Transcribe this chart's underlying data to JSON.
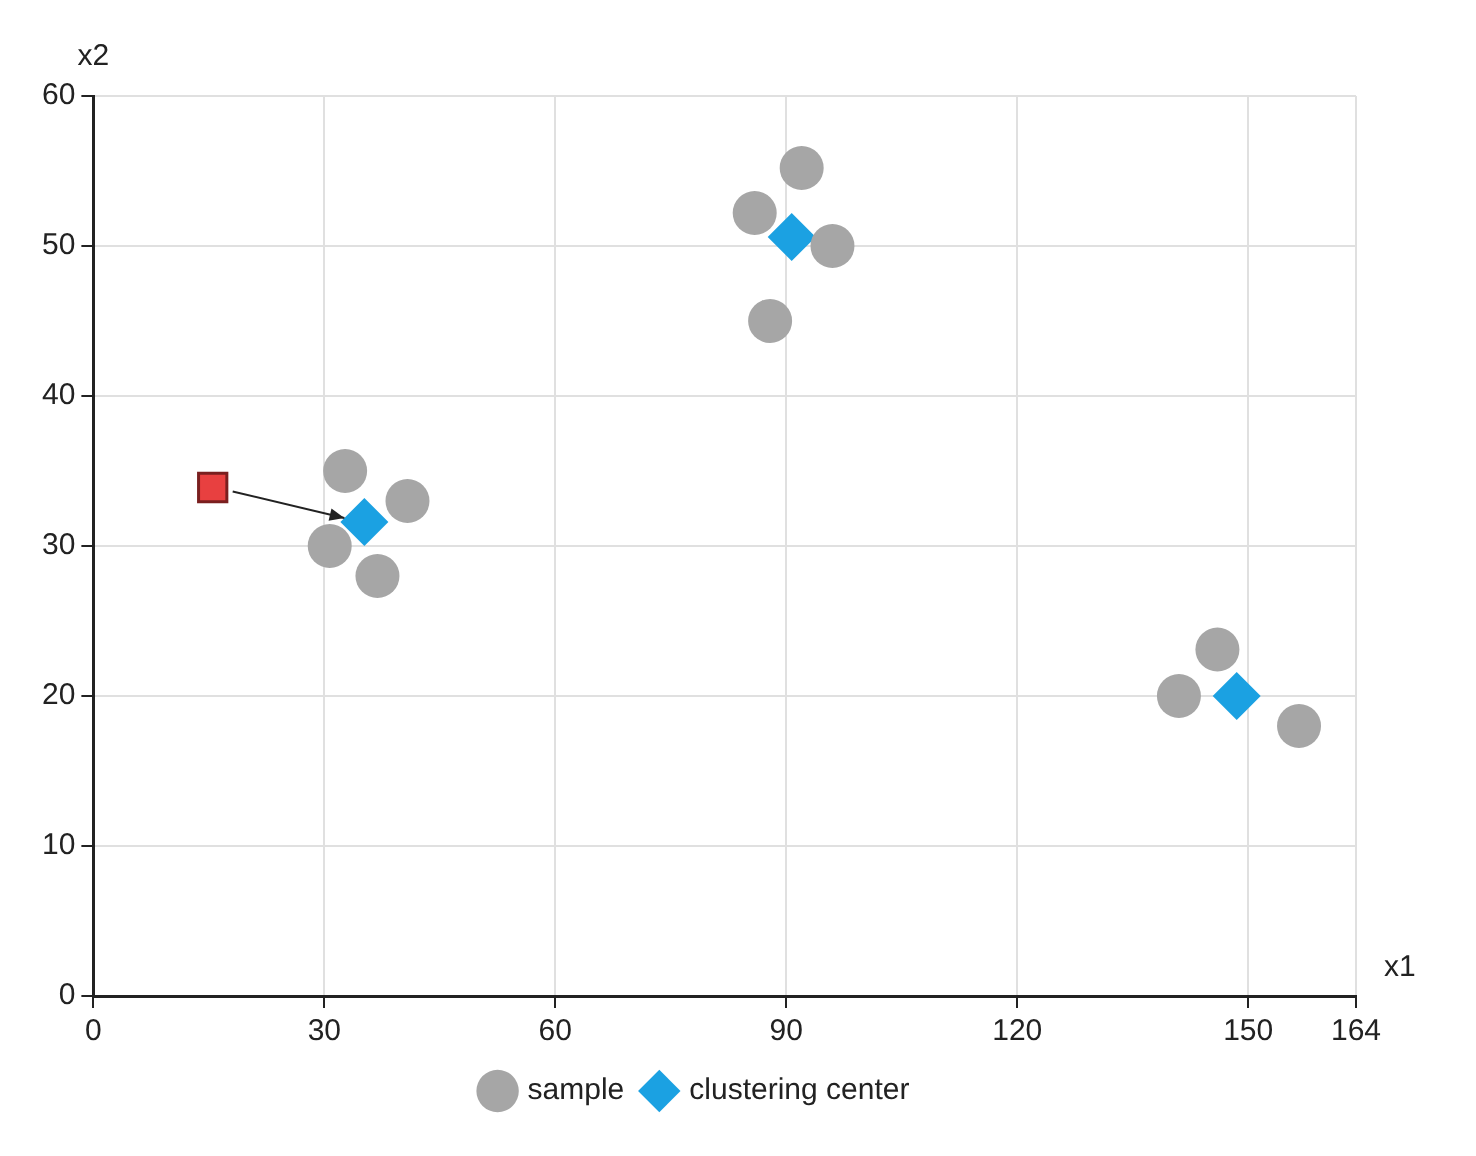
{
  "chart_data": {
    "type": "scatter",
    "xlabel": "x1",
    "ylabel": "x2",
    "xlim": [
      0,
      164
    ],
    "xticks": [
      0,
      30,
      60,
      90,
      120,
      150,
      164
    ],
    "ylim": [
      0,
      60
    ],
    "yticks": [
      0,
      10,
      20,
      30,
      40,
      50,
      60
    ],
    "grid": true,
    "legend": "bottom",
    "series": [
      {
        "name": "sample",
        "color": "#a6a6a6",
        "marker": "circle",
        "x": [
          32.7,
          40.8,
          30.7,
          36.9,
          85.9,
          92,
          96,
          87.9,
          141,
          146,
          156.6
        ],
        "values": [
          35,
          33,
          30,
          28,
          52.2,
          55.2,
          50,
          45,
          20,
          23.1,
          18
        ]
      },
      {
        "name": "clustering center",
        "color": "#1ba1e2",
        "marker": "diamond",
        "x": [
          35.2,
          90.7,
          148.5
        ],
        "values": [
          31.6,
          50.6,
          20
        ]
      },
      {
        "color": "#e84040",
        "marker": "square",
        "x": [
          15.5
        ],
        "values": [
          33.9
        ]
      }
    ]
  }
}
